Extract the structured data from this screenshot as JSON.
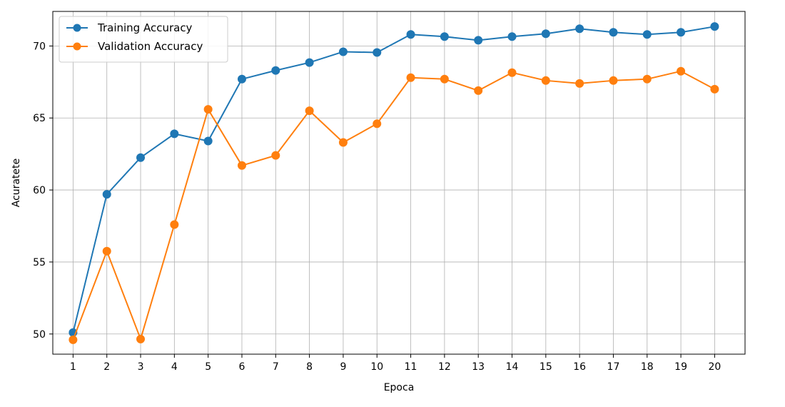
{
  "chart_data": {
    "type": "line",
    "title": "",
    "xlabel": "Epoca",
    "ylabel": "Acuratete",
    "x": [
      1,
      2,
      3,
      4,
      5,
      6,
      7,
      8,
      9,
      10,
      11,
      12,
      13,
      14,
      15,
      16,
      17,
      18,
      19,
      20
    ],
    "xlim": [
      0.4,
      20.9
    ],
    "ylim": [
      48.6,
      72.4
    ],
    "yticks": [
      50,
      55,
      60,
      65,
      70
    ],
    "grid": true,
    "legend_position": "upper-left",
    "series": [
      {
        "name": "Training Accuracy",
        "color": "#1f77b4",
        "marker": "circle",
        "values": [
          50.1,
          59.7,
          62.25,
          63.9,
          63.4,
          67.7,
          68.3,
          68.85,
          69.6,
          69.55,
          70.8,
          70.65,
          70.4,
          70.65,
          70.85,
          71.2,
          70.95,
          70.8,
          70.95,
          71.35
        ]
      },
      {
        "name": "Validation Accuracy",
        "color": "#ff7f0e",
        "marker": "circle",
        "values": [
          49.6,
          55.75,
          49.65,
          57.6,
          65.6,
          61.7,
          62.4,
          65.5,
          63.3,
          64.6,
          67.8,
          67.7,
          66.9,
          68.15,
          67.6,
          67.4,
          67.6,
          67.7,
          68.25,
          67.0
        ]
      }
    ]
  }
}
